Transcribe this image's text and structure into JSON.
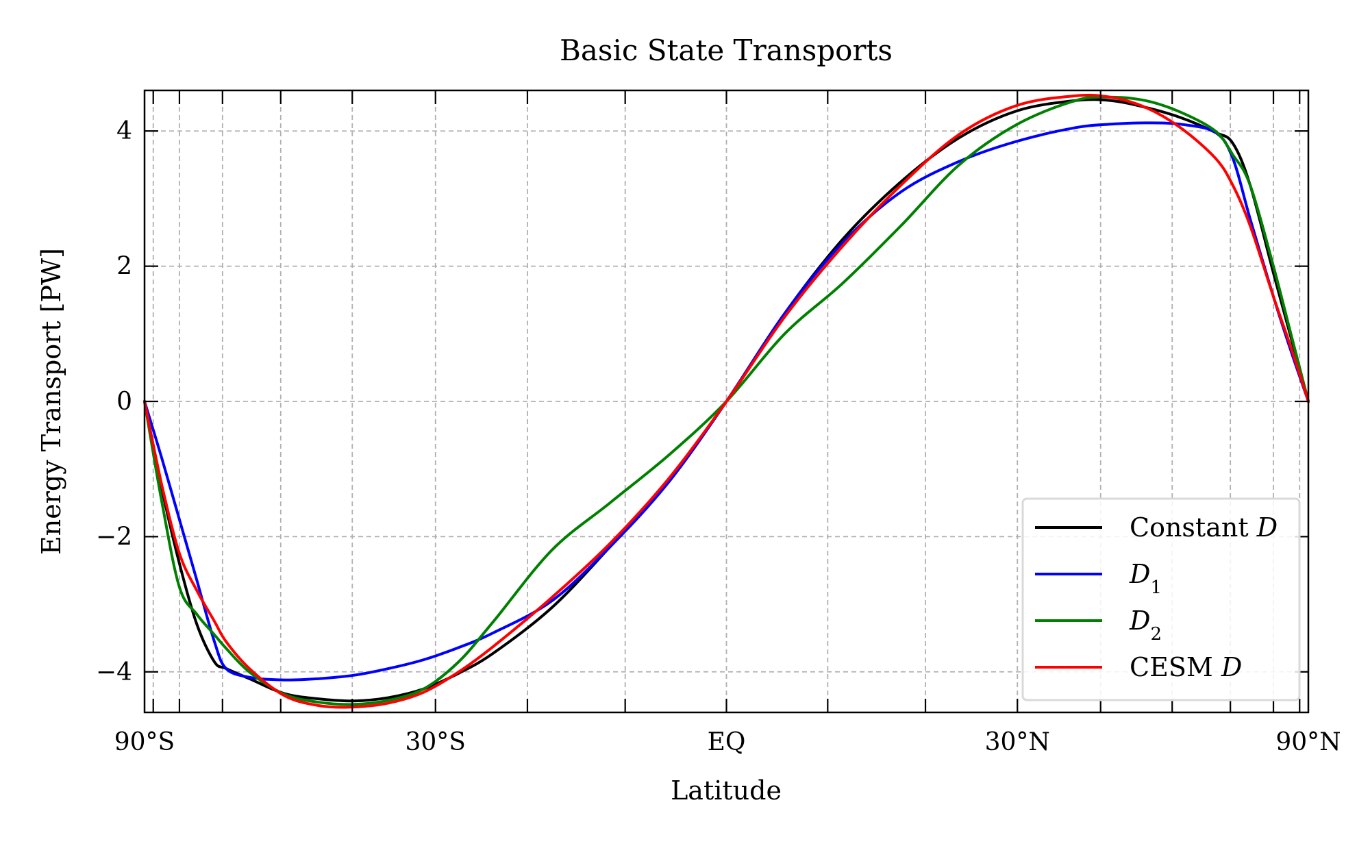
{
  "chart_data": {
    "type": "line",
    "title": "Basic State Transports",
    "xlabel": "Latitude",
    "ylabel": "Energy Transport [PW]",
    "xlim": [
      -1,
      1
    ],
    "ylim": [
      -4.6,
      4.6
    ],
    "x_scale": "sine of latitude",
    "grid": true,
    "legend_position": "lower-right",
    "x_ticks": [
      {
        "value": -1,
        "label": "90°S"
      },
      {
        "value": -0.5,
        "label": "30°S"
      },
      {
        "value": 0,
        "label": "EQ"
      },
      {
        "value": 0.5,
        "label": "30°N"
      },
      {
        "value": 1,
        "label": "90°N"
      }
    ],
    "y_ticks": [
      {
        "value": -4,
        "label": "−4"
      },
      {
        "value": -2,
        "label": "−2"
      },
      {
        "value": 0,
        "label": "0"
      },
      {
        "value": 2,
        "label": "2"
      },
      {
        "value": 4,
        "label": "4"
      }
    ],
    "x_grid_values": [
      -0.985,
      -0.94,
      -0.866,
      -0.766,
      -0.643,
      -0.5,
      -0.342,
      -0.174,
      0,
      0.174,
      0.342,
      0.5,
      0.643,
      0.766,
      0.866,
      0.94,
      0.985
    ],
    "series": [
      {
        "name": "Constant D",
        "name_parts": [
          {
            "text": "Constant ",
            "italic": false
          },
          {
            "text": "D",
            "italic": true
          }
        ],
        "color": "#000000",
        "x": [
          -1,
          -0.97,
          -0.94,
          -0.91,
          -0.88,
          -0.86,
          -0.82,
          -0.76,
          -0.7,
          -0.64,
          -0.58,
          -0.52,
          -0.46,
          -0.4,
          -0.3,
          -0.2,
          -0.1,
          0,
          0.1,
          0.2,
          0.3,
          0.4,
          0.5,
          0.6,
          0.66,
          0.72,
          0.78,
          0.84,
          0.87,
          0.9,
          0.94,
          0.97,
          1
        ],
        "y": [
          0,
          -1.3,
          -2.4,
          -3.3,
          -3.85,
          -3.95,
          -4.1,
          -4.32,
          -4.4,
          -4.43,
          -4.38,
          -4.25,
          -4.02,
          -3.72,
          -3.05,
          -2.15,
          -1.2,
          0,
          1.3,
          2.4,
          3.25,
          3.9,
          4.3,
          4.45,
          4.45,
          4.35,
          4.2,
          3.98,
          3.82,
          3.2,
          1.9,
          0.95,
          0
        ]
      },
      {
        "name": "D1",
        "name_parts": [
          {
            "text": "D",
            "italic": true
          },
          {
            "text": "1",
            "italic": false,
            "subscript": true
          }
        ],
        "color": "#0000ff",
        "x": [
          -1,
          -0.97,
          -0.94,
          -0.91,
          -0.88,
          -0.86,
          -0.82,
          -0.76,
          -0.7,
          -0.64,
          -0.58,
          -0.52,
          -0.46,
          -0.4,
          -0.3,
          -0.2,
          -0.1,
          0,
          0.1,
          0.2,
          0.3,
          0.4,
          0.5,
          0.6,
          0.66,
          0.72,
          0.78,
          0.84,
          0.87,
          0.9,
          0.94,
          0.97,
          1
        ],
        "y": [
          0,
          -0.85,
          -1.75,
          -2.65,
          -3.55,
          -3.95,
          -4.08,
          -4.12,
          -4.1,
          -4.05,
          -3.95,
          -3.82,
          -3.64,
          -3.42,
          -2.95,
          -2.15,
          -1.2,
          0,
          1.3,
          2.35,
          3.1,
          3.55,
          3.85,
          4.05,
          4.1,
          4.12,
          4.1,
          3.98,
          3.6,
          2.7,
          1.55,
          0.75,
          0
        ]
      },
      {
        "name": "D2",
        "name_parts": [
          {
            "text": "D",
            "italic": true
          },
          {
            "text": "2",
            "italic": false,
            "subscript": true
          }
        ],
        "color": "#008000",
        "x": [
          -1,
          -0.97,
          -0.94,
          -0.91,
          -0.88,
          -0.86,
          -0.82,
          -0.76,
          -0.7,
          -0.64,
          -0.58,
          -0.52,
          -0.46,
          -0.4,
          -0.3,
          -0.2,
          -0.1,
          0,
          0.1,
          0.2,
          0.3,
          0.4,
          0.5,
          0.6,
          0.66,
          0.72,
          0.78,
          0.84,
          0.87,
          0.9,
          0.94,
          0.97,
          1
        ],
        "y": [
          0,
          -1.5,
          -2.75,
          -3.15,
          -3.45,
          -3.65,
          -4.0,
          -4.33,
          -4.45,
          -4.48,
          -4.42,
          -4.25,
          -3.85,
          -3.25,
          -2.2,
          -1.5,
          -0.8,
          0,
          1.0,
          1.75,
          2.6,
          3.5,
          4.1,
          4.45,
          4.5,
          4.45,
          4.28,
          4.0,
          3.65,
          3.2,
          2.0,
          1.0,
          0
        ]
      },
      {
        "name": "CESM D",
        "name_parts": [
          {
            "text": "CESM ",
            "italic": false
          },
          {
            "text": "D",
            "italic": true
          }
        ],
        "color": "#ff0000",
        "x": [
          -1,
          -0.97,
          -0.94,
          -0.91,
          -0.88,
          -0.86,
          -0.82,
          -0.76,
          -0.7,
          -0.64,
          -0.58,
          -0.52,
          -0.46,
          -0.4,
          -0.3,
          -0.2,
          -0.1,
          0,
          0.1,
          0.2,
          0.3,
          0.4,
          0.5,
          0.6,
          0.66,
          0.72,
          0.78,
          0.84,
          0.87,
          0.9,
          0.94,
          0.97,
          1
        ],
        "y": [
          0,
          -1.25,
          -2.25,
          -2.8,
          -3.25,
          -3.55,
          -3.95,
          -4.35,
          -4.5,
          -4.52,
          -4.46,
          -4.3,
          -4.0,
          -3.62,
          -2.9,
          -2.1,
          -1.15,
          0,
          1.25,
          2.3,
          3.2,
          3.95,
          4.38,
          4.52,
          4.5,
          4.35,
          4.05,
          3.6,
          3.2,
          2.6,
          1.55,
          0.8,
          0
        ]
      }
    ]
  }
}
